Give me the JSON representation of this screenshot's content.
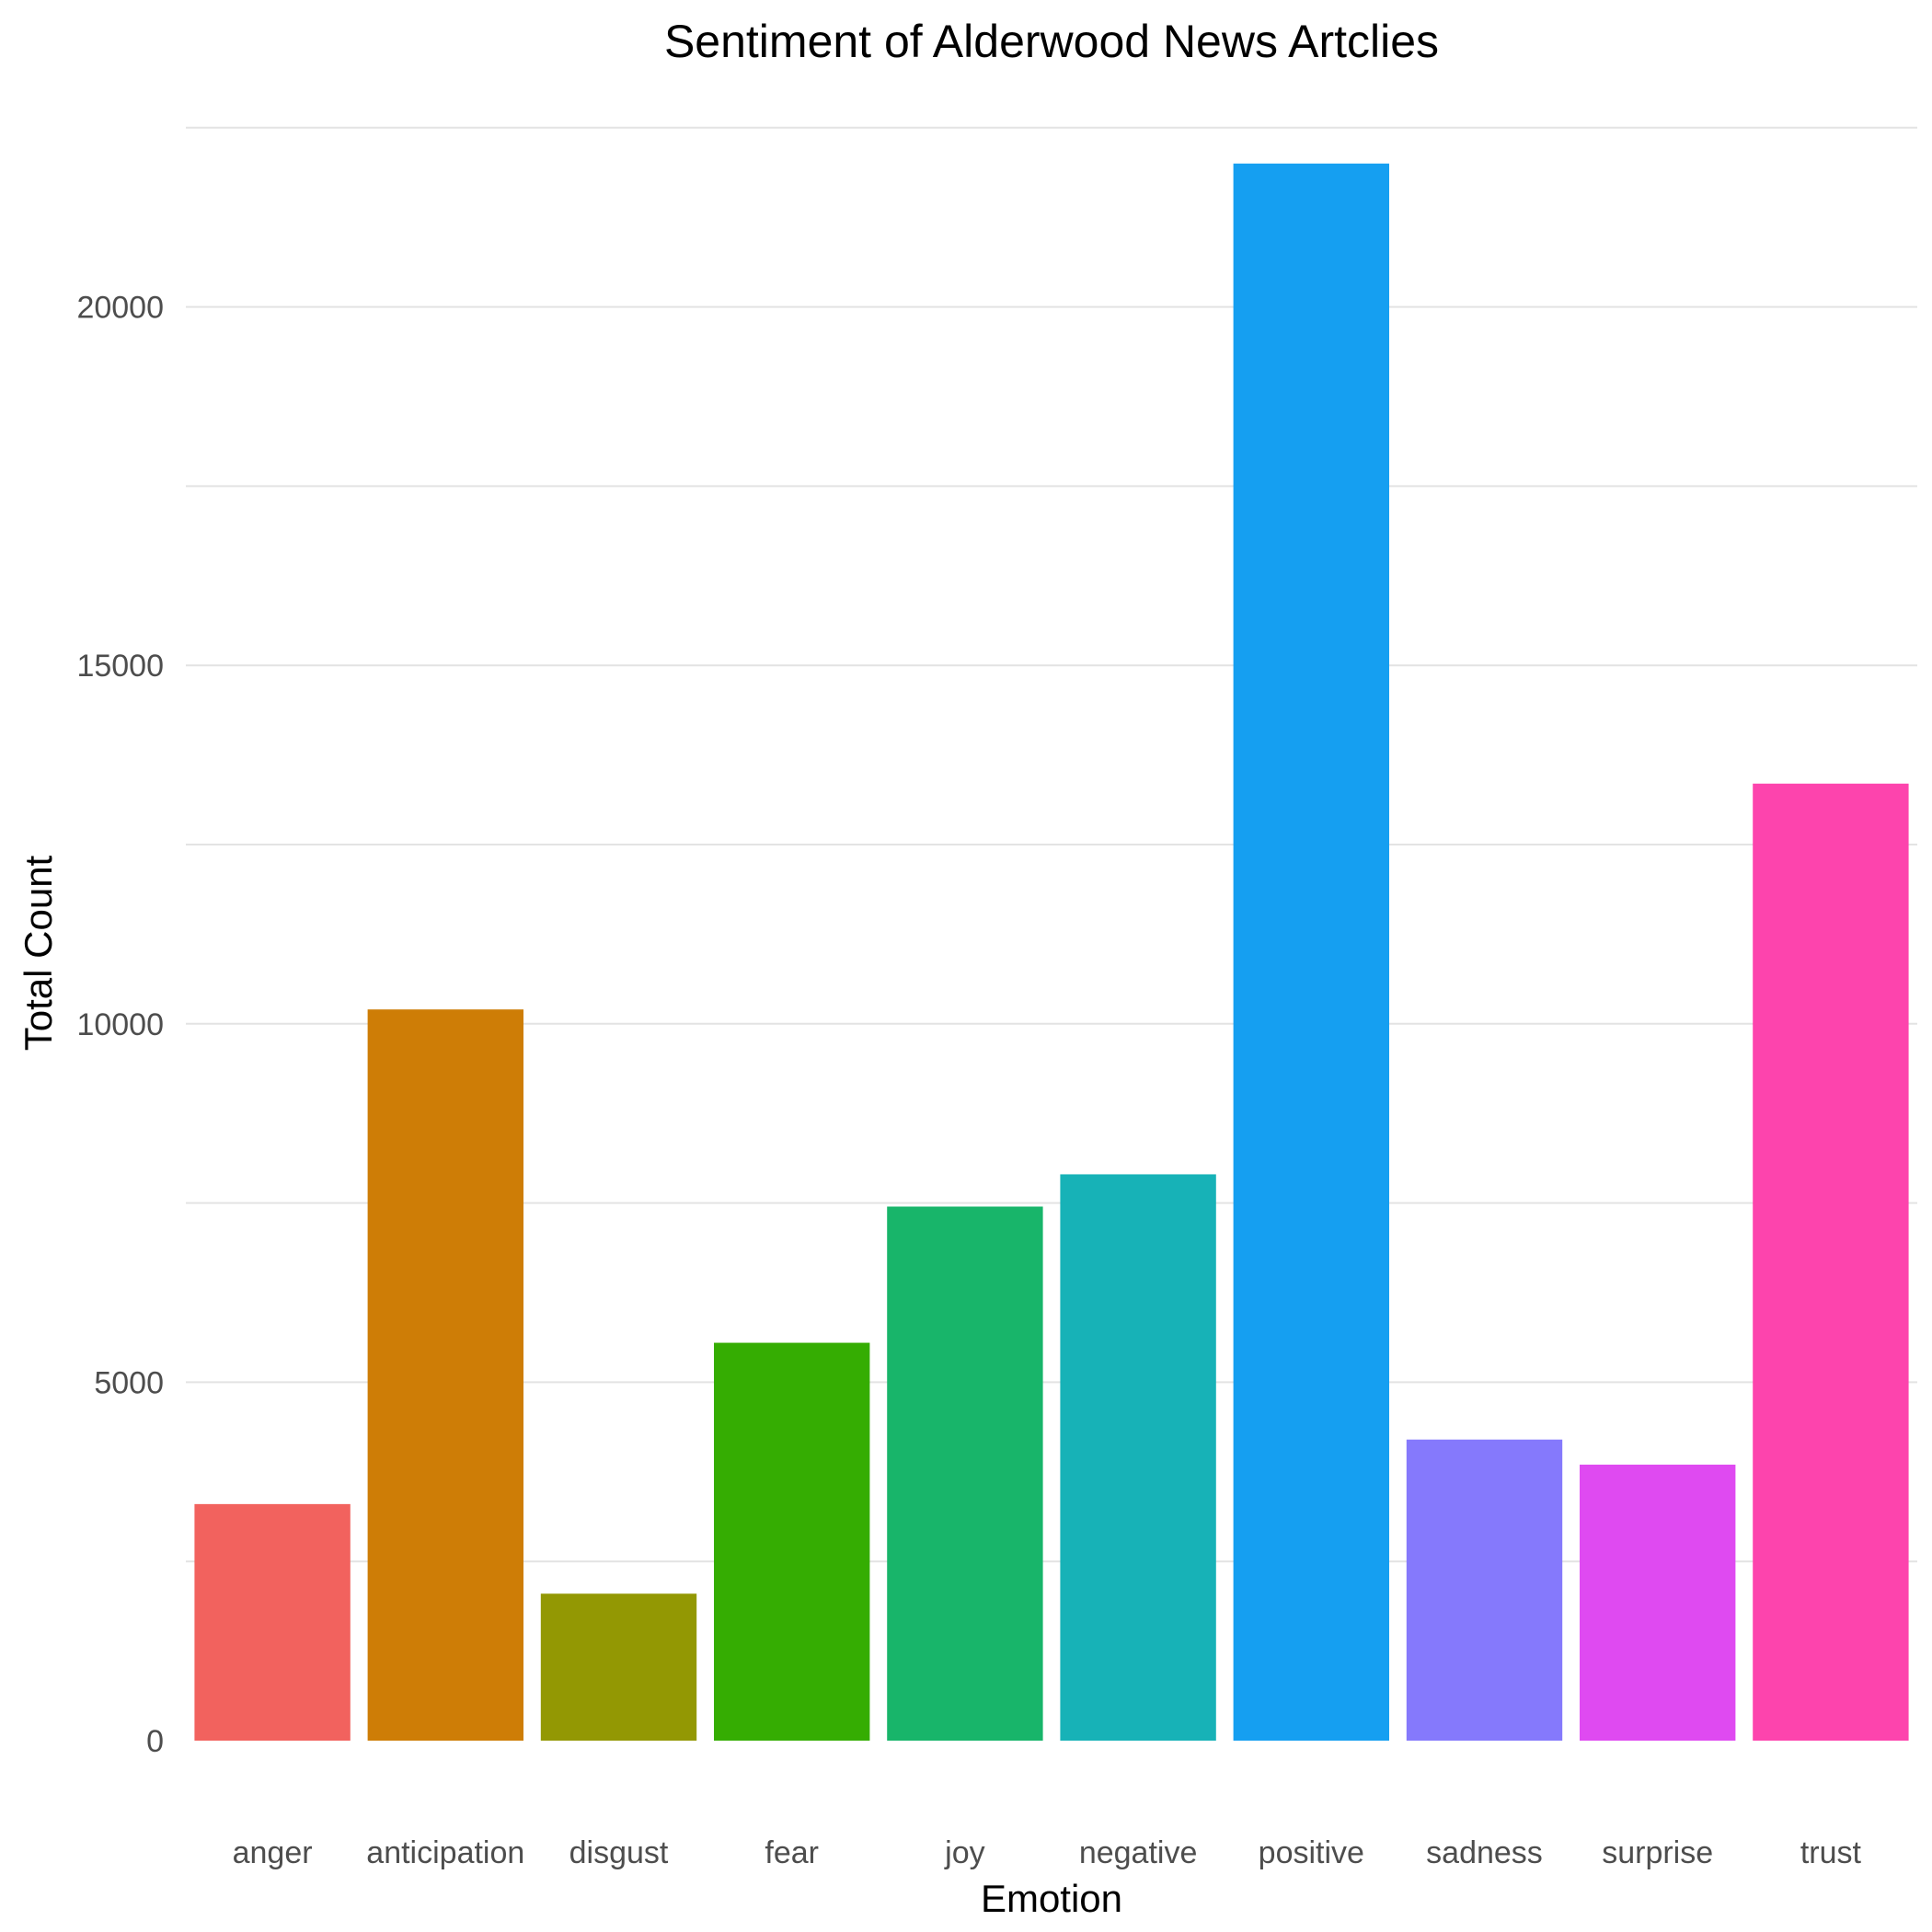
{
  "chart_data": {
    "type": "bar",
    "title": "Sentiment of Alderwood News Artclies",
    "xlabel": "Emotion",
    "ylabel": "Total Count",
    "categories": [
      "anger",
      "anticipation",
      "disgust",
      "fear",
      "joy",
      "negative",
      "positive",
      "sadness",
      "surprise",
      "trust"
    ],
    "values": [
      3300,
      10200,
      2050,
      5550,
      7450,
      7900,
      22000,
      4200,
      3850,
      13350
    ],
    "colors": [
      "#F2625E",
      "#CE7D06",
      "#939803",
      "#35AD02",
      "#18B56A",
      "#17B2B7",
      "#159FF1",
      "#8579FC",
      "#DF4AF1",
      "#FD44AD"
    ],
    "yticks": [
      0,
      5000,
      10000,
      15000,
      20000
    ],
    "ylim": [
      0,
      22500
    ],
    "grid": true,
    "legend": "none"
  }
}
